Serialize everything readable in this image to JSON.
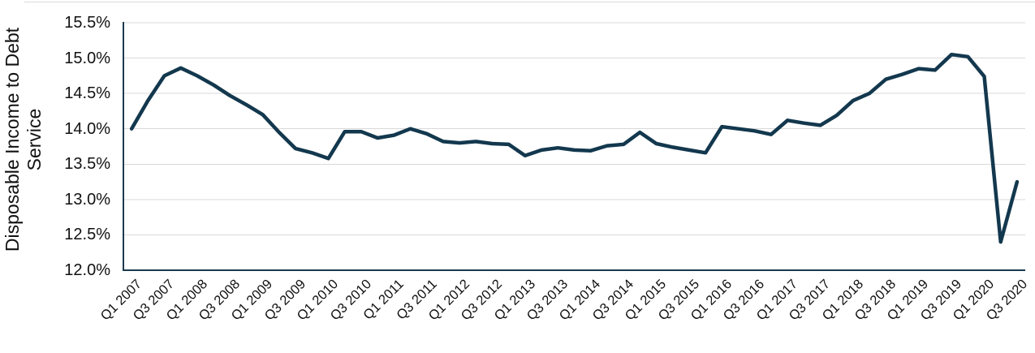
{
  "chart_data": {
    "type": "line",
    "title": "",
    "xlabel": "",
    "ylabel": "Disposable Income to Debt Service",
    "ylim": [
      12.0,
      15.5
    ],
    "y_ticks": [
      "12.0%",
      "12.5%",
      "13.0%",
      "13.5%",
      "14.0%",
      "14.5%",
      "15.0%",
      "15.5%"
    ],
    "grid": true,
    "legend": "none",
    "categories": [
      "Q1 2007",
      "Q2 2007",
      "Q3 2007",
      "Q4 2007",
      "Q1 2008",
      "Q2 2008",
      "Q3 2008",
      "Q4 2008",
      "Q1 2009",
      "Q2 2009",
      "Q3 2009",
      "Q4 2009",
      "Q1 2010",
      "Q2 2010",
      "Q3 2010",
      "Q4 2010",
      "Q1 2011",
      "Q2 2011",
      "Q3 2011",
      "Q4 2011",
      "Q1 2012",
      "Q2 2012",
      "Q3 2012",
      "Q4 2012",
      "Q1 2013",
      "Q2 2013",
      "Q3 2013",
      "Q4 2013",
      "Q1 2014",
      "Q2 2014",
      "Q3 2014",
      "Q4 2014",
      "Q1 2015",
      "Q2 2015",
      "Q3 2015",
      "Q4 2015",
      "Q1 2016",
      "Q2 2016",
      "Q3 2016",
      "Q4 2016",
      "Q1 2017",
      "Q2 2017",
      "Q3 2017",
      "Q4 2017",
      "Q1 2018",
      "Q2 2018",
      "Q3 2018",
      "Q4 2018",
      "Q1 2019",
      "Q2 2019",
      "Q3 2019",
      "Q4 2019",
      "Q1 2020",
      "Q2 2020",
      "Q3 2020"
    ],
    "x_tick_step": 2,
    "series": [
      {
        "name": "Disposable Income to Debt Service",
        "values": [
          14.0,
          14.4,
          14.75,
          14.86,
          14.75,
          14.62,
          14.47,
          14.34,
          14.2,
          13.95,
          13.72,
          13.66,
          13.58,
          13.96,
          13.96,
          13.87,
          13.91,
          14.0,
          13.93,
          13.82,
          13.8,
          13.82,
          13.79,
          13.78,
          13.62,
          13.7,
          13.73,
          13.7,
          13.69,
          13.76,
          13.78,
          13.95,
          13.79,
          13.74,
          13.7,
          13.66,
          14.03,
          14.0,
          13.97,
          13.92,
          14.12,
          14.08,
          14.05,
          14.19,
          14.4,
          14.5,
          14.7,
          14.77,
          14.85,
          14.83,
          15.05,
          15.02,
          14.74,
          12.4,
          13.25
        ]
      }
    ],
    "colors": {
      "line": "#13384e",
      "axis": "#1c3a4e",
      "gridline": "#d9d9d9",
      "tick_text": "#111111"
    }
  }
}
